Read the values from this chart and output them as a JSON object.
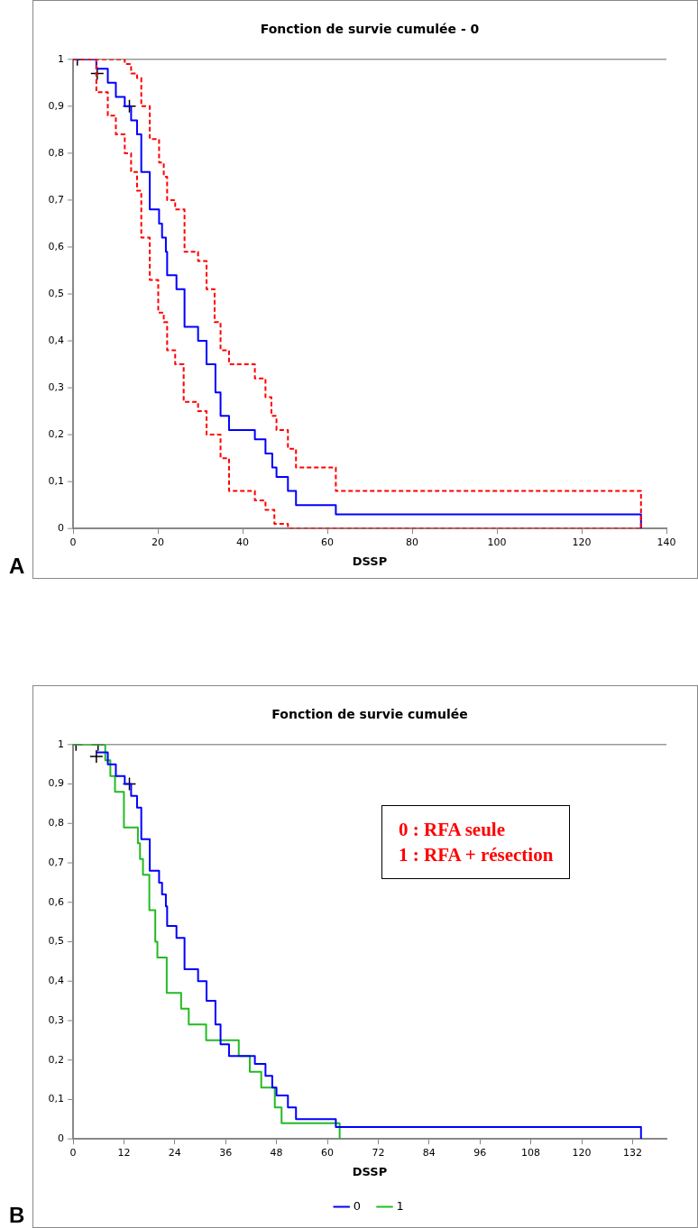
{
  "chart_data": [
    {
      "type": "step",
      "title": "Fonction de survie cumulée - 0",
      "xlabel": "DSSP",
      "xlim": [
        0,
        140
      ],
      "xticks": [
        0,
        20,
        40,
        60,
        80,
        100,
        120,
        140
      ],
      "ylim": [
        0,
        1
      ],
      "yticks": [
        {
          "value": 0,
          "label": "0"
        },
        {
          "value": 0.1,
          "label": "0,1"
        },
        {
          "value": 0.2,
          "label": "0,2"
        },
        {
          "value": 0.3,
          "label": "0,3"
        },
        {
          "value": 0.4,
          "label": "0,4"
        },
        {
          "value": 0.5,
          "label": "0,5"
        },
        {
          "value": 0.6,
          "label": "0,6"
        },
        {
          "value": 0.7,
          "label": "0,7"
        },
        {
          "value": 0.8,
          "label": "0,8"
        },
        {
          "value": 0.9,
          "label": "0,9"
        },
        1
      ],
      "grid": false,
      "legend": false,
      "marker": "none",
      "annotations": [
        "A"
      ],
      "series": [
        {
          "color": "#ff0000",
          "line_style": "dashed",
          "x": [
            0,
            12.2,
            13.7,
            15.1,
            16.1,
            18.1,
            20.3,
            21.4,
            22.2,
            24.1,
            26.3,
            29.5,
            31.5,
            33.4,
            34.8,
            36.8,
            42.9,
            45.4,
            46.8,
            48,
            50.7,
            52.6,
            62,
            134
          ],
          "values": [
            1,
            0.99,
            0.97,
            0.96,
            0.9,
            0.83,
            0.78,
            0.75,
            0.7,
            0.68,
            0.59,
            0.57,
            0.51,
            0.44,
            0.38,
            0.35,
            0.32,
            0.28,
            0.24,
            0.21,
            0.17,
            0.13,
            0.08,
            0
          ]
        },
        {
          "color": "#ff0000",
          "line_style": "dashed",
          "x": [
            0,
            5.5,
            8.2,
            10.1,
            12.2,
            13.7,
            15.1,
            16.1,
            18.1,
            20.1,
            21.4,
            22.2,
            24.1,
            26.1,
            29.5,
            31.5,
            34.8,
            36.8,
            42.9,
            45.4,
            47.5,
            50.7,
            134
          ],
          "values": [
            1,
            0.93,
            0.88,
            0.84,
            0.8,
            0.76,
            0.72,
            0.62,
            0.53,
            0.46,
            0.44,
            0.38,
            0.35,
            0.27,
            0.25,
            0.2,
            0.15,
            0.08,
            0.06,
            0.04,
            0.01,
            0,
            0
          ]
        },
        {
          "color": "#0000ff",
          "line_style": "solid",
          "x": [
            0,
            5.5,
            8.2,
            10.1,
            12.2,
            13.7,
            15.1,
            16.1,
            18.1,
            20.3,
            21,
            21.9,
            22.2,
            24.4,
            26.3,
            29.5,
            31.5,
            33.6,
            34.8,
            36.8,
            42.9,
            45.4,
            47,
            48,
            50.7,
            52.6,
            62,
            134
          ],
          "values": [
            1,
            0.98,
            0.95,
            0.92,
            0.9,
            0.87,
            0.84,
            0.76,
            0.68,
            0.65,
            0.62,
            0.59,
            0.54,
            0.51,
            0.43,
            0.4,
            0.35,
            0.29,
            0.24,
            0.21,
            0.19,
            0.16,
            0.13,
            0.11,
            0.08,
            0.05,
            0.03,
            0
          ]
        },
        {
          "type": "scatter",
          "color": "#000000",
          "marker": "cross",
          "x": [
            1,
            5.7,
            13.3
          ],
          "values": [
            1,
            0.97,
            0.9
          ]
        }
      ]
    },
    {
      "type": "step",
      "title": "Fonction de survie cumulée",
      "xlabel": "DSSP",
      "xlim": [
        0,
        140
      ],
      "xticks": [
        0,
        12,
        24,
        36,
        48,
        60,
        72,
        84,
        96,
        108,
        120,
        132
      ],
      "ylim": [
        0,
        1
      ],
      "yticks": [
        {
          "value": 0,
          "label": "0"
        },
        {
          "value": 0.1,
          "label": "0,1"
        },
        {
          "value": 0.2,
          "label": "0,2"
        },
        {
          "value": 0.3,
          "label": "0,3"
        },
        {
          "value": 0.4,
          "label": "0,4"
        },
        {
          "value": 0.5,
          "label": "0,5"
        },
        {
          "value": 0.6,
          "label": "0,6"
        },
        {
          "value": 0.7,
          "label": "0,7"
        },
        {
          "value": 0.8,
          "label": "0,8"
        },
        {
          "value": 0.9,
          "label": "0,9"
        },
        1
      ],
      "grid": false,
      "legend": "bottom",
      "marker": "none",
      "annotations": [
        "B",
        "0 : RFA seule",
        "1 : RFA + résection"
      ],
      "series": [
        {
          "name": "0",
          "color": "#0000ff",
          "line_style": "solid",
          "x": [
            5.5,
            8.2,
            10.1,
            12.2,
            13.7,
            15.1,
            16.1,
            18.1,
            20.3,
            21,
            21.9,
            22.2,
            24.4,
            26.3,
            29.5,
            31.5,
            33.6,
            34.8,
            36.8,
            42.9,
            45.4,
            47,
            48,
            50.7,
            52.6,
            62,
            134
          ],
          "values": [
            0.98,
            0.95,
            0.92,
            0.9,
            0.87,
            0.84,
            0.76,
            0.68,
            0.65,
            0.62,
            0.59,
            0.54,
            0.51,
            0.43,
            0.4,
            0.35,
            0.29,
            0.24,
            0.21,
            0.19,
            0.16,
            0.13,
            0.11,
            0.08,
            0.05,
            0.03,
            0
          ]
        },
        {
          "name": "1",
          "color": "#22bb22",
          "line_style": "solid",
          "x": [
            0,
            7.6,
            8.8,
            9.9,
            12,
            15.3,
            15.8,
            16.5,
            18,
            19.4,
            19.9,
            22.1,
            25.5,
            27.3,
            31.4,
            39.1,
            41.7,
            44.4,
            47.6,
            49.2,
            62.9
          ],
          "values": [
            1,
            0.96,
            0.92,
            0.88,
            0.79,
            0.75,
            0.71,
            0.67,
            0.58,
            0.5,
            0.46,
            0.37,
            0.33,
            0.29,
            0.25,
            0.21,
            0.17,
            0.13,
            0.08,
            0.04,
            0
          ]
        },
        {
          "type": "scatter",
          "color": "#000000",
          "marker": "cross",
          "x": [
            0.7,
            5.5,
            5.9,
            13.3
          ],
          "values": [
            1,
            0.97,
            1,
            0.9
          ]
        }
      ]
    }
  ]
}
